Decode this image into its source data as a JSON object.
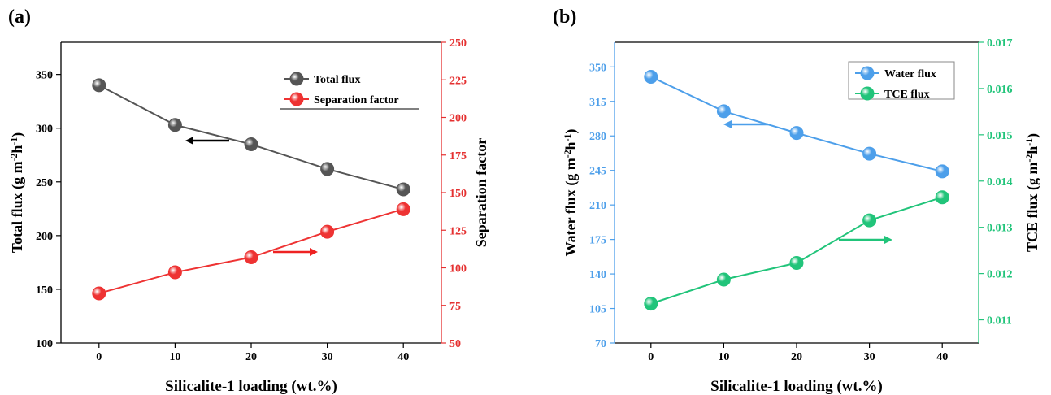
{
  "chart_data": [
    {
      "panel_label": "(a)",
      "type": "line",
      "x": [
        0,
        10,
        20,
        30,
        40
      ],
      "xlabel": "Silicalite-1 loading (wt.%)",
      "xlim": [
        -5,
        45
      ],
      "xticks": [
        "0",
        "10",
        "20",
        "30",
        "40"
      ],
      "ylabel_left": "Total flux (g m-2h-1)",
      "ylim_left": [
        100,
        380
      ],
      "yticks_left": [
        "100",
        "150",
        "200",
        "250",
        "300",
        "350"
      ],
      "ylabel_right": "Separation factor",
      "ylim_right": [
        50,
        250
      ],
      "yticks_right": [
        "50",
        "75",
        "100",
        "125",
        "150",
        "175",
        "200",
        "225",
        "250"
      ],
      "legend_position": "top-right",
      "series": [
        {
          "name": "Total flux",
          "axis": "left",
          "color": "#555555",
          "values": [
            340,
            303,
            285,
            262,
            243
          ]
        },
        {
          "name": "Separation factor",
          "axis": "right",
          "color": "#ee3333",
          "values": [
            83,
            97,
            107,
            124,
            139
          ]
        }
      ],
      "arrows": [
        {
          "direction": "left",
          "color": "#000000"
        },
        {
          "direction": "right",
          "color": "#ee2222"
        }
      ]
    },
    {
      "panel_label": "(b)",
      "type": "line",
      "x": [
        0,
        10,
        20,
        30,
        40
      ],
      "xlabel": "Silicalite-1 loading (wt.%)",
      "xlim": [
        -5,
        45
      ],
      "xticks": [
        "0",
        "10",
        "20",
        "30",
        "40"
      ],
      "ylabel_left": "Water flux (g m-2h-1)",
      "ylim_left": [
        70,
        375
      ],
      "yticks_left": [
        "70",
        "105",
        "140",
        "175",
        "210",
        "245",
        "280",
        "315",
        "350"
      ],
      "ylabel_right": "TCE flux (g m-2h-1)",
      "ylim_right": [
        0.0105,
        0.017
      ],
      "yticks_right": [
        "0.011",
        "0.012",
        "0.013",
        "0.014",
        "0.015",
        "0.016",
        "0.017"
      ],
      "legend_position": "top-right",
      "series": [
        {
          "name": "Water flux",
          "axis": "left",
          "color": "#4d9fea",
          "values": [
            340,
            305,
            283,
            262,
            244
          ]
        },
        {
          "name": "TCE flux",
          "axis": "right",
          "color": "#21c47a",
          "values": [
            0.01135,
            0.01187,
            0.01223,
            0.01315,
            0.01365
          ]
        }
      ],
      "arrows": [
        {
          "direction": "left",
          "color": "#4d9fea"
        },
        {
          "direction": "right",
          "color": "#21c47a"
        }
      ]
    }
  ]
}
